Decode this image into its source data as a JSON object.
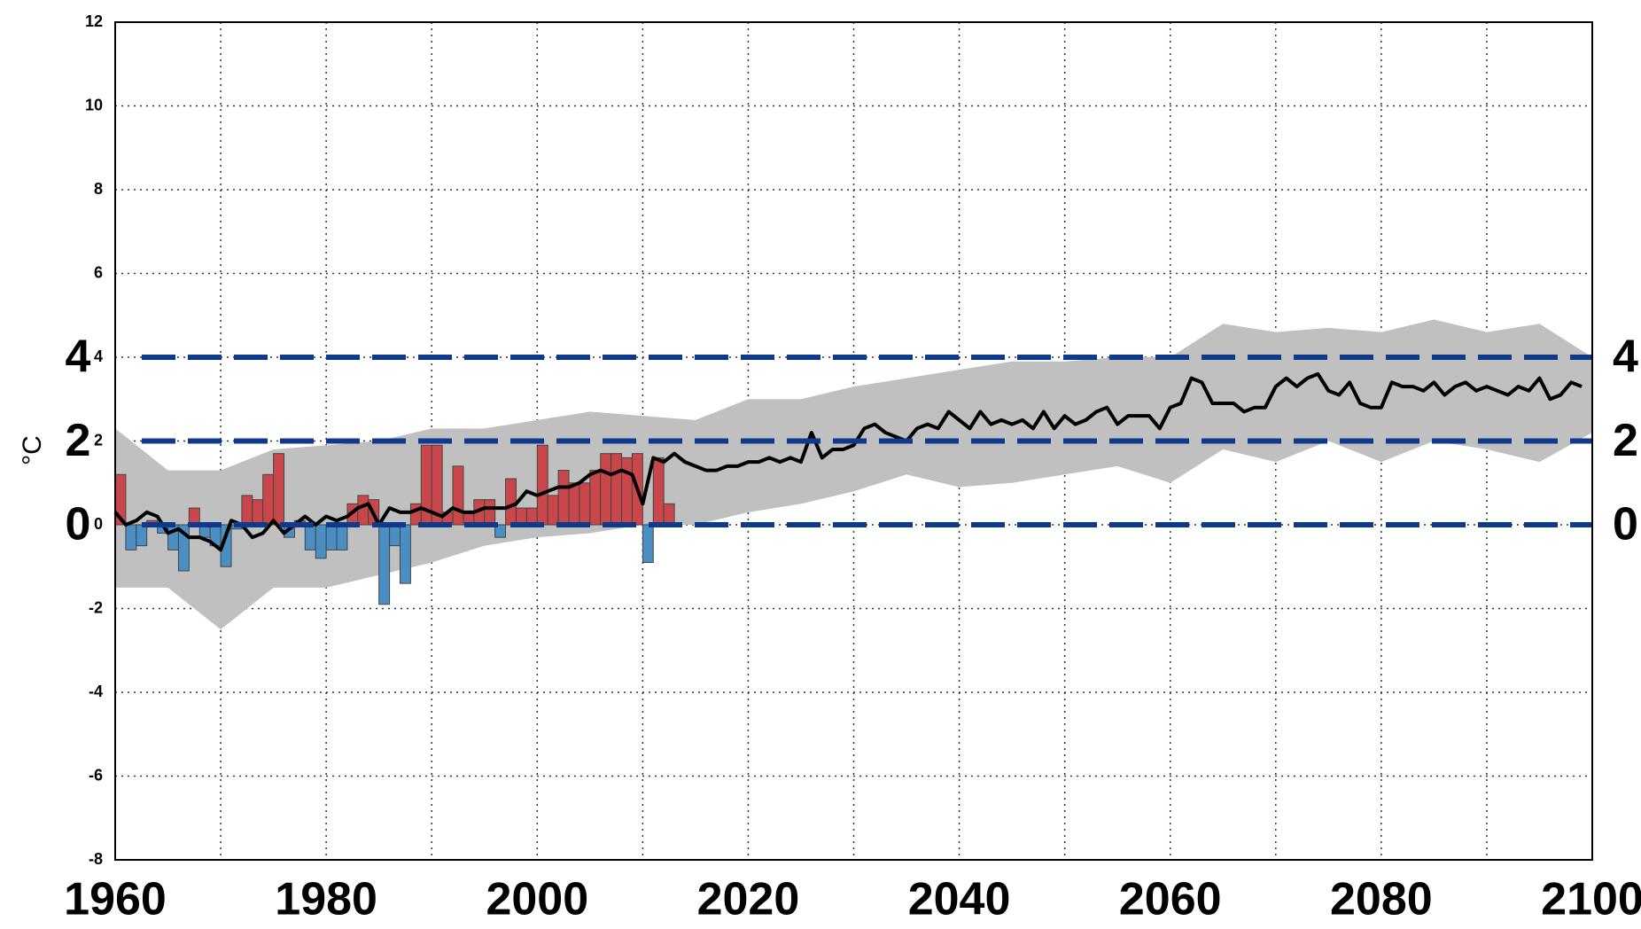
{
  "chart_data": {
    "type": "combo",
    "ylabel": "°C",
    "xlim": [
      1960,
      2100
    ],
    "ylim": [
      -8,
      12
    ],
    "yticks": [
      -8,
      -6,
      -4,
      -2,
      0,
      2,
      4,
      6,
      8,
      10,
      12
    ],
    "xticks": [
      1960,
      1980,
      2000,
      2020,
      2040,
      2060,
      2080,
      2100
    ],
    "x_grid": [
      1970,
      1990,
      2010,
      2030,
      2050,
      2070,
      2090
    ],
    "grid": true,
    "reference_lines": {
      "values": [
        0,
        2,
        4
      ],
      "color": "#0d3a8c"
    },
    "envelope": {
      "color": "#c0c0c0",
      "x": [
        1960,
        1965,
        1970,
        1975,
        1980,
        1985,
        1990,
        1995,
        2000,
        2005,
        2010,
        2015,
        2020,
        2025,
        2030,
        2035,
        2040,
        2045,
        2050,
        2055,
        2060,
        2065,
        2070,
        2075,
        2080,
        2085,
        2090,
        2095,
        2100
      ],
      "upper": [
        2.3,
        1.3,
        1.3,
        1.8,
        1.9,
        2.0,
        2.3,
        2.3,
        2.5,
        2.7,
        2.6,
        2.5,
        3.0,
        3.0,
        3.3,
        3.5,
        3.7,
        3.9,
        3.9,
        4.0,
        4.0,
        4.8,
        4.6,
        4.7,
        4.6,
        4.9,
        4.6,
        4.8,
        4.0
      ],
      "lower": [
        -1.5,
        -1.5,
        -2.5,
        -1.5,
        -1.5,
        -1.2,
        -0.9,
        -0.5,
        -0.3,
        -0.2,
        0.0,
        0.0,
        0.3,
        0.5,
        0.8,
        1.2,
        0.9,
        1.0,
        1.2,
        1.4,
        1.0,
        1.8,
        1.5,
        2.0,
        1.5,
        2.0,
        1.8,
        1.5,
        2.2
      ]
    },
    "bars": {
      "positive_color": "#c9464a",
      "negative_color": "#4a8fc4",
      "x": [
        1960,
        1961,
        1962,
        1963,
        1964,
        1965,
        1966,
        1967,
        1968,
        1969,
        1970,
        1971,
        1972,
        1973,
        1974,
        1975,
        1976,
        1977,
        1978,
        1979,
        1980,
        1981,
        1982,
        1983,
        1984,
        1985,
        1986,
        1987,
        1988,
        1989,
        1990,
        1991,
        1992,
        1993,
        1994,
        1995,
        1996,
        1997,
        1998,
        1999,
        2000,
        2001,
        2002,
        2003,
        2004,
        2005,
        2006,
        2007,
        2008,
        2009,
        2010,
        2011,
        2012
      ],
      "values": [
        1.2,
        -0.6,
        -0.5,
        0.1,
        -0.2,
        -0.6,
        -1.1,
        0.4,
        -0.3,
        -0.5,
        -1.0,
        -0.1,
        0.7,
        0.6,
        1.2,
        1.7,
        -0.3,
        0.1,
        -0.6,
        -0.8,
        -0.6,
        -0.6,
        0.5,
        0.7,
        0.6,
        -1.9,
        -0.5,
        -1.4,
        0.5,
        1.9,
        1.9,
        0.3,
        1.4,
        0.3,
        0.6,
        0.6,
        -0.3,
        1.1,
        0.4,
        0.4,
        1.9,
        0.7,
        1.3,
        1.0,
        1.0,
        1.3,
        1.7,
        1.7,
        1.6,
        1.7,
        -0.9,
        1.6,
        0.5
      ]
    },
    "line": {
      "color": "#000000",
      "x": [
        1960,
        1961,
        1962,
        1963,
        1964,
        1965,
        1966,
        1967,
        1968,
        1969,
        1970,
        1971,
        1972,
        1973,
        1974,
        1975,
        1976,
        1977,
        1978,
        1979,
        1980,
        1981,
        1982,
        1983,
        1984,
        1985,
        1986,
        1987,
        1988,
        1989,
        1990,
        1991,
        1992,
        1993,
        1994,
        1995,
        1996,
        1997,
        1998,
        1999,
        2000,
        2001,
        2002,
        2003,
        2004,
        2005,
        2006,
        2007,
        2008,
        2009,
        2010,
        2011,
        2012,
        2013,
        2014,
        2015,
        2016,
        2017,
        2018,
        2019,
        2020,
        2021,
        2022,
        2023,
        2024,
        2025,
        2026,
        2027,
        2028,
        2029,
        2030,
        2031,
        2032,
        2033,
        2034,
        2035,
        2036,
        2037,
        2038,
        2039,
        2040,
        2041,
        2042,
        2043,
        2044,
        2045,
        2046,
        2047,
        2048,
        2049,
        2050,
        2051,
        2052,
        2053,
        2054,
        2055,
        2056,
        2057,
        2058,
        2059,
        2060,
        2061,
        2062,
        2063,
        2064,
        2065,
        2066,
        2067,
        2068,
        2069,
        2070,
        2071,
        2072,
        2073,
        2074,
        2075,
        2076,
        2077,
        2078,
        2079,
        2080,
        2081,
        2082,
        2083,
        2084,
        2085,
        2086,
        2087,
        2088,
        2089,
        2090,
        2091,
        2092,
        2093,
        2094,
        2095,
        2096,
        2097,
        2098,
        2099
      ],
      "values": [
        0.3,
        0.0,
        0.1,
        0.3,
        0.2,
        -0.2,
        -0.1,
        -0.3,
        -0.3,
        -0.4,
        -0.6,
        0.1,
        0.0,
        -0.3,
        -0.2,
        0.1,
        -0.2,
        0.0,
        0.2,
        0.0,
        0.2,
        0.1,
        0.2,
        0.4,
        0.5,
        0.0,
        0.4,
        0.3,
        0.3,
        0.4,
        0.3,
        0.2,
        0.4,
        0.3,
        0.3,
        0.4,
        0.4,
        0.4,
        0.5,
        0.8,
        0.7,
        0.8,
        0.9,
        0.9,
        1.0,
        1.2,
        1.3,
        1.2,
        1.3,
        1.2,
        0.5,
        1.6,
        1.5,
        1.7,
        1.5,
        1.4,
        1.3,
        1.3,
        1.4,
        1.4,
        1.5,
        1.5,
        1.6,
        1.5,
        1.6,
        1.5,
        2.2,
        1.6,
        1.8,
        1.8,
        1.9,
        2.3,
        2.4,
        2.2,
        2.1,
        2.0,
        2.3,
        2.4,
        2.3,
        2.7,
        2.5,
        2.3,
        2.7,
        2.4,
        2.5,
        2.4,
        2.5,
        2.3,
        2.7,
        2.3,
        2.6,
        2.4,
        2.5,
        2.7,
        2.8,
        2.4,
        2.6,
        2.6,
        2.6,
        2.3,
        2.8,
        2.9,
        3.5,
        3.4,
        2.9,
        2.9,
        2.9,
        2.7,
        2.8,
        2.8,
        3.3,
        3.5,
        3.3,
        3.5,
        3.6,
        3.2,
        3.1,
        3.4,
        2.9,
        2.8,
        2.8,
        3.4,
        3.3,
        3.3,
        3.2,
        3.4,
        3.1,
        3.3,
        3.4,
        3.2,
        3.3,
        3.2,
        3.1,
        3.3,
        3.2,
        3.5,
        3.0,
        3.1,
        3.4,
        3.3
      ]
    }
  }
}
